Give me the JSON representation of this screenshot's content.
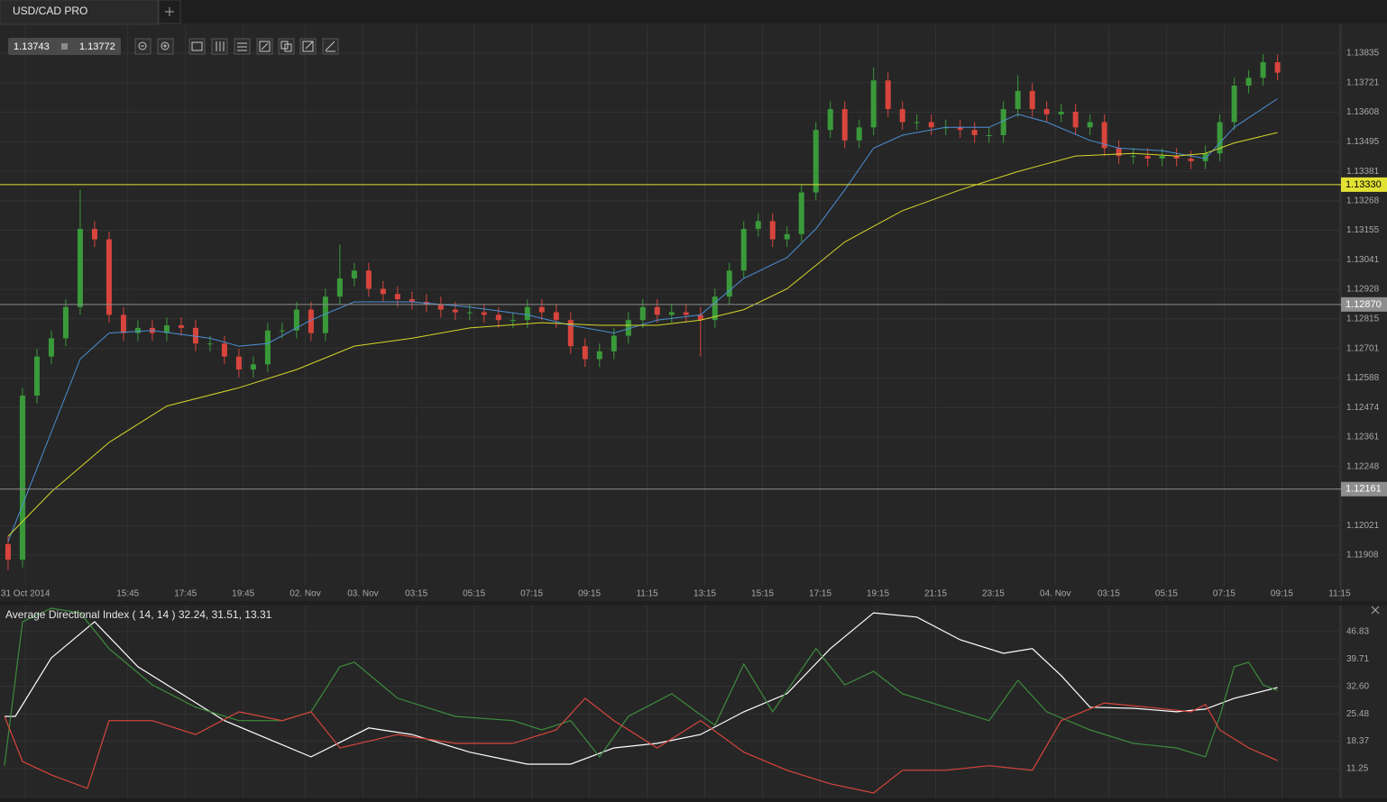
{
  "tab": {
    "title": "USD/CAD PRO"
  },
  "quote": {
    "bid": "1.13743",
    "ask": "1.13772"
  },
  "chart_data": [
    {
      "type": "candlestick",
      "x": [
        0,
        1,
        2,
        3,
        4,
        5,
        6,
        7,
        8,
        9,
        10,
        11,
        12,
        13,
        14,
        15,
        16,
        17,
        18,
        19,
        20,
        21,
        22,
        23,
        24,
        25,
        26,
        27,
        28,
        29,
        30,
        31,
        32,
        33,
        34,
        35,
        36,
        37,
        38,
        39,
        40,
        41,
        42,
        43,
        44,
        45,
        46,
        47,
        48,
        49,
        50,
        51,
        52,
        53,
        54,
        55,
        56,
        57,
        58,
        59,
        60,
        61,
        62,
        63,
        64,
        65,
        66,
        67,
        68,
        69,
        70,
        71,
        72,
        73,
        74,
        75,
        76,
        77,
        78,
        79,
        80,
        81,
        82,
        83,
        84,
        85,
        86,
        87,
        88
      ],
      "open": [
        1.1195,
        1.1189,
        1.1252,
        1.1267,
        1.1274,
        1.1286,
        1.1316,
        1.1312,
        1.1283,
        1.1276,
        1.1278,
        1.1276,
        1.1279,
        1.1278,
        1.1272,
        1.1272,
        1.1267,
        1.1262,
        1.1264,
        1.1277,
        1.1277,
        1.1285,
        1.1276,
        1.129,
        1.1297,
        1.13,
        1.1293,
        1.1291,
        1.1289,
        1.1288,
        1.1287,
        1.1285,
        1.1284,
        1.1284,
        1.1283,
        1.1281,
        1.1281,
        1.1286,
        1.1284,
        1.1281,
        1.1271,
        1.1266,
        1.1269,
        1.1275,
        1.1281,
        1.1286,
        1.1283,
        1.1284,
        1.1283,
        1.1281,
        1.129,
        1.13,
        1.1316,
        1.1319,
        1.1312,
        1.1314,
        1.133,
        1.1354,
        1.1362,
        1.135,
        1.1355,
        1.1373,
        1.1362,
        1.1357,
        1.1357,
        1.1355,
        1.1355,
        1.1354,
        1.1352,
        1.1352,
        1.1362,
        1.1369,
        1.1362,
        1.136,
        1.1361,
        1.1355,
        1.1357,
        1.1347,
        1.1344,
        1.1344,
        1.1343,
        1.1344,
        1.1343,
        1.1342,
        1.1345,
        1.1357,
        1.1371,
        1.1374,
        1.138
      ],
      "high": [
        1.1198,
        1.1255,
        1.127,
        1.1277,
        1.1289,
        1.1331,
        1.1319,
        1.1315,
        1.1286,
        1.1281,
        1.1281,
        1.1282,
        1.1282,
        1.1281,
        1.1275,
        1.1275,
        1.127,
        1.1267,
        1.128,
        1.128,
        1.1288,
        1.1288,
        1.1293,
        1.131,
        1.1303,
        1.1303,
        1.1296,
        1.1294,
        1.1292,
        1.1291,
        1.129,
        1.1288,
        1.1287,
        1.1287,
        1.1286,
        1.1284,
        1.1289,
        1.1289,
        1.1287,
        1.1284,
        1.1274,
        1.1272,
        1.1278,
        1.1284,
        1.1289,
        1.1289,
        1.1287,
        1.1287,
        1.1286,
        1.1293,
        1.1303,
        1.1319,
        1.1322,
        1.1322,
        1.1317,
        1.1333,
        1.1357,
        1.1365,
        1.1365,
        1.1358,
        1.1378,
        1.1376,
        1.1365,
        1.136,
        1.136,
        1.1358,
        1.1358,
        1.1357,
        1.1355,
        1.1365,
        1.1375,
        1.1372,
        1.1365,
        1.1364,
        1.1364,
        1.136,
        1.136,
        1.135,
        1.1347,
        1.1347,
        1.1347,
        1.1347,
        1.1346,
        1.1348,
        1.136,
        1.1374,
        1.1377,
        1.1383,
        1.1383
      ],
      "low": [
        1.1185,
        1.1186,
        1.1249,
        1.1264,
        1.1271,
        1.1283,
        1.1309,
        1.128,
        1.1273,
        1.1273,
        1.1273,
        1.1273,
        1.1275,
        1.1269,
        1.1269,
        1.1264,
        1.1259,
        1.1259,
        1.1261,
        1.1274,
        1.1274,
        1.1273,
        1.1273,
        1.1287,
        1.1294,
        1.129,
        1.1288,
        1.1286,
        1.1285,
        1.1284,
        1.1282,
        1.1281,
        1.1281,
        1.128,
        1.1278,
        1.1278,
        1.1278,
        1.1281,
        1.1278,
        1.1268,
        1.1263,
        1.1263,
        1.1266,
        1.1272,
        1.1278,
        1.128,
        1.128,
        1.128,
        1.1267,
        1.1278,
        1.1287,
        1.1297,
        1.1313,
        1.1309,
        1.1309,
        1.1311,
        1.1327,
        1.1351,
        1.1347,
        1.1347,
        1.1352,
        1.1359,
        1.1354,
        1.1354,
        1.1352,
        1.1352,
        1.1351,
        1.1349,
        1.1349,
        1.1349,
        1.1359,
        1.1359,
        1.1357,
        1.1357,
        1.1352,
        1.1352,
        1.1344,
        1.1341,
        1.1341,
        1.134,
        1.134,
        1.134,
        1.1339,
        1.1339,
        1.1342,
        1.1354,
        1.1368,
        1.1371,
        1.1373
      ],
      "close": [
        1.1189,
        1.1252,
        1.1267,
        1.1274,
        1.1286,
        1.1316,
        1.1312,
        1.1283,
        1.1276,
        1.1278,
        1.1276,
        1.1279,
        1.1278,
        1.1272,
        1.1272,
        1.1267,
        1.1262,
        1.1264,
        1.1277,
        1.1277,
        1.1285,
        1.1276,
        1.129,
        1.1297,
        1.13,
        1.1293,
        1.1291,
        1.1289,
        1.1288,
        1.1287,
        1.1285,
        1.1284,
        1.1284,
        1.1283,
        1.1281,
        1.1281,
        1.1286,
        1.1284,
        1.1281,
        1.1271,
        1.1266,
        1.1269,
        1.1275,
        1.1281,
        1.1286,
        1.1283,
        1.1284,
        1.1283,
        1.1281,
        1.129,
        1.13,
        1.1316,
        1.1319,
        1.1312,
        1.1314,
        1.133,
        1.1354,
        1.1362,
        1.135,
        1.1355,
        1.1373,
        1.1362,
        1.1357,
        1.1357,
        1.1355,
        1.1355,
        1.1354,
        1.1352,
        1.1352,
        1.1362,
        1.1369,
        1.1362,
        1.136,
        1.1361,
        1.1355,
        1.1357,
        1.1347,
        1.1344,
        1.1344,
        1.1343,
        1.1344,
        1.1343,
        1.1342,
        1.1345,
        1.1357,
        1.1371,
        1.1374,
        1.138,
        1.1376
      ],
      "up_color": "#3a9a3a",
      "down_color": "#d8453d",
      "series": [
        {
          "color": "#4d8fd6",
          "x": [
            0,
            1,
            3,
            5,
            7,
            10,
            14,
            16,
            18,
            21,
            24,
            28,
            32,
            36,
            39,
            42,
            45,
            48,
            51,
            54,
            56,
            58,
            60,
            62,
            65,
            68,
            70,
            72,
            75,
            77,
            80,
            83,
            85,
            88
          ],
          "values": [
            1.1196,
            1.121,
            1.1238,
            1.1266,
            1.1276,
            1.1277,
            1.1274,
            1.1271,
            1.1272,
            1.1281,
            1.1288,
            1.1288,
            1.1286,
            1.1283,
            1.1279,
            1.1276,
            1.1281,
            1.1283,
            1.1297,
            1.1305,
            1.1316,
            1.1331,
            1.1347,
            1.1352,
            1.1355,
            1.1355,
            1.136,
            1.1357,
            1.135,
            1.1347,
            1.1346,
            1.1343,
            1.1355,
            1.1366
          ]
        },
        {
          "color": "#d6d62a",
          "x": [
            0,
            3,
            7,
            11,
            16,
            20,
            24,
            28,
            32,
            37,
            41,
            45,
            48,
            51,
            54,
            58,
            62,
            66,
            70,
            74,
            78,
            81,
            83,
            85,
            88
          ],
          "values": [
            1.1198,
            1.1215,
            1.1234,
            1.1248,
            1.1255,
            1.1262,
            1.1271,
            1.1274,
            1.1278,
            1.128,
            1.1279,
            1.1279,
            1.1281,
            1.1285,
            1.1293,
            1.1311,
            1.1323,
            1.1331,
            1.1338,
            1.1344,
            1.1345,
            1.1344,
            1.1345,
            1.1349,
            1.1353
          ]
        }
      ],
      "levels": [
        {
          "value": 1.1333,
          "label": "1.13330",
          "color": "#e2e235",
          "text_color": "#000000"
        },
        {
          "value": 1.1287,
          "label": "1.12870",
          "color": "#8e8e8e",
          "text_color": "#ffffff"
        },
        {
          "value": 1.12161,
          "label": "1.12161",
          "color": "#8e8e8e",
          "text_color": "#ffffff"
        }
      ],
      "xlim": [
        -0.56,
        92.4
      ],
      "ylim": [
        1.1179,
        1.13942
      ],
      "yticks": [
        1.13835,
        1.13721,
        1.13608,
        1.13495,
        1.13381,
        1.13268,
        1.13155,
        1.13041,
        1.12928,
        1.12815,
        1.12701,
        1.12588,
        1.12474,
        1.12361,
        1.12248,
        1.12021,
        1.11908
      ],
      "xticks": [
        {
          "value": 1.2,
          "label": "31 Oct 2014"
        },
        {
          "value": 8.3,
          "label": "15:45"
        },
        {
          "value": 12.3,
          "label": "17:45"
        },
        {
          "value": 16.3,
          "label": "19:45"
        },
        {
          "value": 20.6,
          "label": "02. Nov"
        },
        {
          "value": 24.6,
          "label": "03. Nov"
        },
        {
          "value": 28.3,
          "label": "03:15"
        },
        {
          "value": 32.3,
          "label": "05:15"
        },
        {
          "value": 36.3,
          "label": "07:15"
        },
        {
          "value": 40.3,
          "label": "09:15"
        },
        {
          "value": 44.3,
          "label": "11:15"
        },
        {
          "value": 48.3,
          "label": "13:15"
        },
        {
          "value": 52.3,
          "label": "15:15"
        },
        {
          "value": 56.3,
          "label": "17:15"
        },
        {
          "value": 60.3,
          "label": "19:15"
        },
        {
          "value": 64.3,
          "label": "21:15"
        },
        {
          "value": 68.3,
          "label": "23:15"
        },
        {
          "value": 72.6,
          "label": "04. Nov"
        },
        {
          "value": 76.3,
          "label": "03:15"
        },
        {
          "value": 80.3,
          "label": "05:15"
        },
        {
          "value": 84.3,
          "label": "07:15"
        },
        {
          "value": 88.3,
          "label": "09:15"
        },
        {
          "value": 92.3,
          "label": "11:15"
        }
      ],
      "grid": true
    },
    {
      "type": "line",
      "title": "Average Directional Index ( 14, 14 ) 32.24, 31.51, 13.31",
      "series": [
        {
          "color": "#ffffff",
          "x": [
            -0.25,
            0.5,
            3,
            6,
            9,
            12,
            15,
            18,
            21,
            25,
            28,
            32,
            36,
            39,
            42,
            45,
            48,
            51,
            54,
            57,
            60,
            63,
            66,
            69,
            71,
            73,
            75,
            78,
            81,
            83,
            85,
            88
          ],
          "values": [
            24.8,
            24.8,
            40.0,
            49.4,
            37.7,
            30.7,
            23.7,
            19.0,
            14.3,
            21.8,
            20.1,
            15.5,
            12.4,
            12.4,
            16.6,
            17.8,
            20.1,
            26.0,
            30.7,
            42.4,
            51.7,
            50.6,
            44.7,
            41.2,
            42.4,
            35.4,
            27.2,
            26.9,
            26.0,
            26.7,
            29.5,
            32.3
          ]
        },
        {
          "color": "#3d8c3d",
          "x": [
            -0.25,
            1,
            3,
            5,
            7,
            10,
            13,
            16,
            19,
            21,
            23,
            24,
            27,
            31,
            35,
            37,
            39,
            41,
            43,
            46,
            49,
            51,
            53,
            56,
            58,
            60,
            62,
            65,
            68,
            70,
            72,
            75,
            78,
            81,
            83,
            84,
            85,
            86,
            87,
            88
          ],
          "values": [
            12.0,
            49.4,
            52.9,
            51.7,
            42.4,
            33.0,
            27.2,
            23.7,
            23.7,
            26.0,
            37.7,
            38.9,
            29.5,
            24.8,
            23.7,
            21.3,
            23.7,
            14.3,
            24.8,
            30.7,
            22.5,
            38.4,
            26.0,
            42.4,
            33.0,
            36.5,
            30.7,
            27.2,
            23.7,
            34.2,
            26.0,
            21.3,
            17.8,
            16.6,
            14.3,
            24.8,
            37.7,
            38.9,
            33.0,
            31.5
          ]
        },
        {
          "color": "#d8453d",
          "x": [
            -0.25,
            1,
            3,
            5.5,
            7,
            10,
            13,
            16,
            19,
            21,
            23,
            27,
            31,
            35,
            38,
            40,
            42,
            45,
            48,
            51,
            54,
            57,
            60,
            62,
            65,
            68,
            71,
            73,
            76,
            79,
            82,
            83,
            84,
            86,
            88
          ],
          "values": [
            24.8,
            13.1,
            9.6,
            6.1,
            23.7,
            23.7,
            20.1,
            26.0,
            23.7,
            26.0,
            16.6,
            20.1,
            17.8,
            17.8,
            21.3,
            29.5,
            23.7,
            16.6,
            23.7,
            15.5,
            10.8,
            7.3,
            4.9,
            10.8,
            10.8,
            12.0,
            10.8,
            23.7,
            28.3,
            27.2,
            26.0,
            27.9,
            21.3,
            16.6,
            13.3
          ]
        }
      ],
      "xlim": [
        -0.56,
        92.4
      ],
      "ylim": [
        3.5,
        53.6
      ],
      "yticks": [
        11.25,
        18.37,
        25.48,
        {
          "value": 32.6,
          "label": "32.60"
        },
        39.71,
        46.83
      ],
      "grid": true
    }
  ]
}
